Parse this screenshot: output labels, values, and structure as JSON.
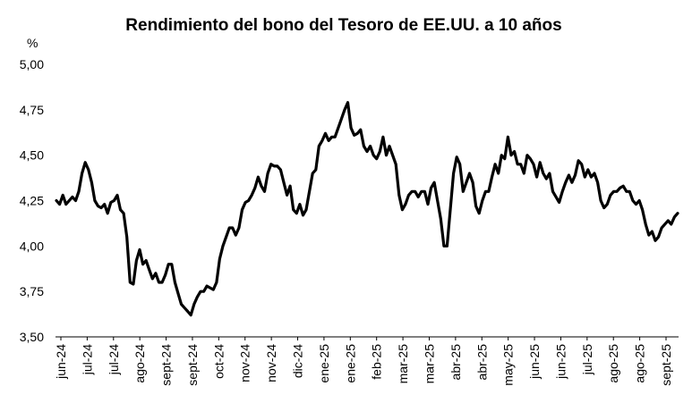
{
  "chart_data": {
    "type": "line",
    "title": "Rendimiento del bono del Tesoro de EE.UU. a 10 años",
    "ylabel": "%",
    "xlabel": "",
    "ylim": [
      3.5,
      5.0
    ],
    "y_ticks": [
      "5,00",
      "4,75",
      "4,50",
      "4,25",
      "4,00",
      "3,75",
      "3,50"
    ],
    "y_tick_values": [
      5.0,
      4.75,
      4.5,
      4.25,
      4.0,
      3.75,
      3.5
    ],
    "x_tick_labels": [
      "jun-24",
      "jul-24",
      "jul-24",
      "ago-24",
      "sept-24",
      "sept-24",
      "oct-24",
      "nov-24",
      "nov-24",
      "dic-24",
      "ene-25",
      "ene-25",
      "feb-25",
      "mar-25",
      "mar-25",
      "abr-25",
      "abr-25",
      "may-25",
      "jun-25",
      "jun-25",
      "jul-25",
      "ago-25",
      "ago-25",
      "sept-25"
    ],
    "grid": false,
    "legend": "none",
    "line_color": "#000000",
    "series": [
      {
        "values": [
          4.25,
          4.23,
          4.28,
          4.23,
          4.25,
          4.27,
          4.25,
          4.3,
          4.4,
          4.46,
          4.42,
          4.35,
          4.25,
          4.22,
          4.21,
          4.23,
          4.18,
          4.24,
          4.25,
          4.28,
          4.2,
          4.18,
          4.05,
          3.8,
          3.79,
          3.92,
          3.98,
          3.9,
          3.92,
          3.87,
          3.82,
          3.85,
          3.8,
          3.8,
          3.84,
          3.9,
          3.9,
          3.8,
          3.74,
          3.68,
          3.66,
          3.64,
          3.62,
          3.68,
          3.72,
          3.75,
          3.75,
          3.78,
          3.77,
          3.76,
          3.8,
          3.93,
          4.0,
          4.05,
          4.1,
          4.1,
          4.06,
          4.1,
          4.2,
          4.24,
          4.25,
          4.28,
          4.32,
          4.38,
          4.33,
          4.3,
          4.4,
          4.45,
          4.44,
          4.44,
          4.42,
          4.35,
          4.28,
          4.33,
          4.2,
          4.18,
          4.23,
          4.17,
          4.2,
          4.3,
          4.4,
          4.42,
          4.55,
          4.58,
          4.62,
          4.58,
          4.6,
          4.6,
          4.65,
          4.7,
          4.75,
          4.79,
          4.65,
          4.61,
          4.62,
          4.64,
          4.55,
          4.52,
          4.55,
          4.5,
          4.48,
          4.52,
          4.6,
          4.5,
          4.55,
          4.5,
          4.45,
          4.28,
          4.2,
          4.23,
          4.28,
          4.3,
          4.3,
          4.27,
          4.3,
          4.3,
          4.23,
          4.32,
          4.35,
          4.25,
          4.15,
          4.0,
          4.0,
          4.2,
          4.4,
          4.49,
          4.45,
          4.3,
          4.35,
          4.4,
          4.35,
          4.22,
          4.18,
          4.25,
          4.3,
          4.3,
          4.38,
          4.45,
          4.4,
          4.5,
          4.48,
          4.6,
          4.5,
          4.52,
          4.45,
          4.45,
          4.4,
          4.5,
          4.48,
          4.45,
          4.38,
          4.46,
          4.4,
          4.37,
          4.4,
          4.3,
          4.27,
          4.24,
          4.3,
          4.35,
          4.39,
          4.35,
          4.39,
          4.47,
          4.45,
          4.38,
          4.42,
          4.38,
          4.4,
          4.35,
          4.25,
          4.21,
          4.23,
          4.28,
          4.3,
          4.3,
          4.32,
          4.33,
          4.3,
          4.3,
          4.25,
          4.23,
          4.25,
          4.2,
          4.12,
          4.06,
          4.08,
          4.03,
          4.05,
          4.1,
          4.12,
          4.14,
          4.12,
          4.16,
          4.18
        ]
      }
    ]
  }
}
